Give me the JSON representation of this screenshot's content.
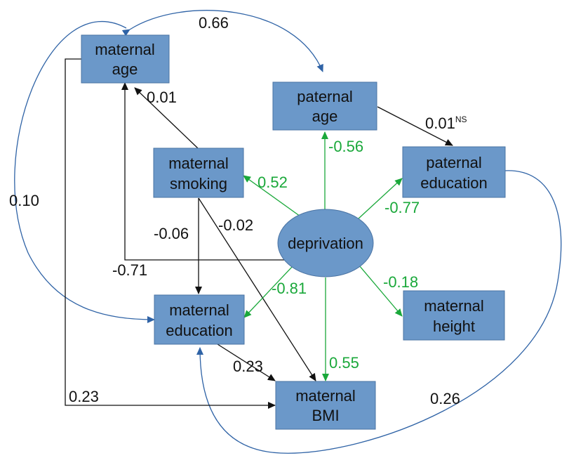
{
  "nodes": {
    "maternal_age": [
      "maternal",
      "age"
    ],
    "paternal_age": [
      "paternal",
      "age"
    ],
    "maternal_smoking": [
      "maternal",
      "smoking"
    ],
    "paternal_education": [
      "paternal",
      "education"
    ],
    "deprivation": [
      "deprivation"
    ],
    "maternal_education": [
      "maternal",
      "education"
    ],
    "maternal_height": [
      "maternal",
      "height"
    ],
    "maternal_bmi": [
      "maternal",
      "BMI"
    ]
  },
  "edges": {
    "matage_patage": "0.66",
    "patage_pated": "0.01",
    "patage_pated_sup": "NS",
    "smoking_matage": "0.01",
    "dep_patage": "-0.56",
    "dep_smoking": "0.52",
    "dep_pated": "-0.77",
    "matage_mated": "0.10",
    "smoking_mated": "-0.06",
    "smoking_bmi": "-0.02",
    "dep_matage": "-0.71",
    "dep_mated": "-0.81",
    "dep_height": "-0.18",
    "mated_bmi": "0.23",
    "dep_bmi": "0.55",
    "matage_bmi": "0.23",
    "pated_mated": "0.26"
  },
  "colors": {
    "node_fill": "#6b98c9",
    "black_path": "#111111",
    "deprivation_path": "#1aa83a",
    "correlation": "#2f63a6"
  }
}
